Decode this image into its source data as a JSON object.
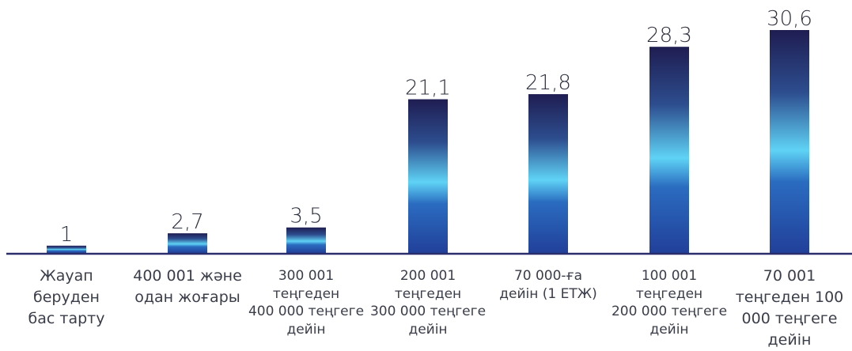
{
  "chart_data": {
    "type": "bar",
    "categories": [
      "Жауап\nберуден\nбас тарту",
      "400 001 және\nодан жоғары",
      "300 001\nтеңгеден\n400 000 теңгеге\nдейін",
      "200 001\nтеңгеден\n300 000 теңгеге\nдейін",
      "70 000-ға\nдейін (1 ЕТЖ)",
      "100 001\nтеңгеден\n200 000 теңгеге\nдейін",
      "70 001\nтеңгеден 100\n000 теңгеге\nдейін"
    ],
    "values": [
      1,
      2.7,
      3.5,
      21.1,
      21.8,
      28.3,
      30.6
    ],
    "value_labels": [
      "1",
      "2,7",
      "3,5",
      "21,1",
      "21,8",
      "28,3",
      "30,6"
    ],
    "ylim": [
      0,
      30.6
    ],
    "grid": false,
    "legend": "none",
    "colors": {
      "bar_dark": "#1f1d52",
      "bar_light": "#5fd3f5",
      "bar_base": "#22409a",
      "axis": "#2a2f6b"
    }
  }
}
